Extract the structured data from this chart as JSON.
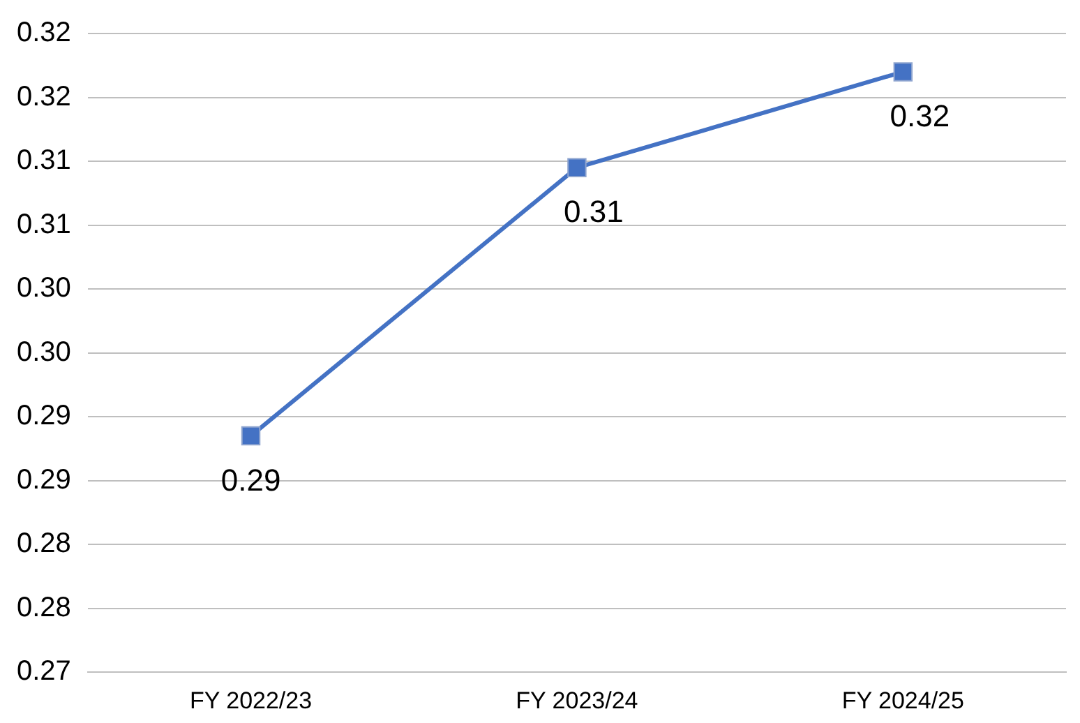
{
  "chart_data": {
    "type": "line",
    "categories": [
      "FY 2022/23",
      "FY 2023/24",
      "FY 2024/25"
    ],
    "series": [
      {
        "color": "#4472c4",
        "values": [
          0.2885,
          0.3095,
          0.317
        ],
        "value_labels": [
          "0.29",
          "0.31",
          "0.32"
        ]
      }
    ],
    "ylim": [
      0.27,
      0.32
    ],
    "yticks": [
      0.27,
      {
        "value": 0.275,
        "label": "0.28"
      },
      0.28,
      {
        "value": 0.285,
        "label": "0.29"
      },
      0.29,
      {
        "value": 0.295,
        "label": "0.30"
      },
      {
        "value": 0.3,
        "label": "0.30"
      },
      {
        "value": 0.305,
        "label": "0.31"
      },
      0.31,
      {
        "value": 0.315,
        "label": "0.32"
      },
      0.32
    ],
    "grid": "y",
    "legend": false,
    "marker": "square",
    "line_style": "solid"
  }
}
